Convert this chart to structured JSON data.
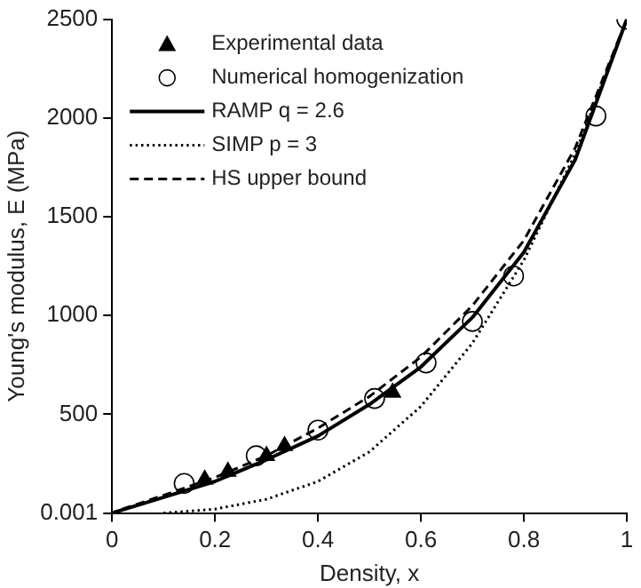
{
  "chart_data": {
    "type": "scatter",
    "xlabel": "Density, x",
    "ylabel": "Young's modulus, E (MPa)",
    "xlim": [
      0,
      1
    ],
    "xticks": [
      0,
      0.2,
      0.4,
      0.6,
      0.8,
      1
    ],
    "ylim": [
      0.001,
      2500
    ],
    "yticks": [
      0.001,
      500,
      1000,
      1500,
      2000,
      2500
    ],
    "grid": false,
    "legend": "top left",
    "series": [
      {
        "name": "Experimental data",
        "type": "scatter",
        "marker": "triangle",
        "color": "#000000",
        "x": [
          0.18,
          0.225,
          0.3,
          0.335,
          0.545
        ],
        "values": [
          170,
          210,
          290,
          340,
          610
        ]
      },
      {
        "name": "Numerical homogenization",
        "type": "scatter",
        "marker": "circle",
        "color": "#000000",
        "x": [
          0.14,
          0.28,
          0.4,
          0.51,
          0.61,
          0.7,
          0.78,
          0.94,
          1.0
        ],
        "values": [
          150,
          290,
          420,
          580,
          760,
          970,
          1200,
          2010,
          2500
        ]
      },
      {
        "name": "RAMP q = 2.6",
        "type": "line",
        "line_style": "solid",
        "marker": "none",
        "color": "#000000",
        "x": [
          0,
          0.1,
          0.2,
          0.3,
          0.4,
          0.5,
          0.6,
          0.7,
          0.8,
          0.9,
          1.0
        ],
        "values": [
          0.001,
          80,
          160,
          270,
          390,
          550,
          740,
          990,
          1320,
          1790,
          2500
        ]
      },
      {
        "name": "SIMP p = 3",
        "type": "line",
        "line_style": "dotted",
        "marker": "none",
        "color": "#000000",
        "x": [
          0.1,
          0.2,
          0.3,
          0.4,
          0.5,
          0.6,
          0.7,
          0.8,
          0.9,
          1.0
        ],
        "values": [
          0.001,
          20,
          70,
          160,
          310,
          540,
          860,
          1280,
          1820,
          2500
        ]
      },
      {
        "name": "HS upper bound",
        "type": "line",
        "line_style": "dashed",
        "marker": "none",
        "color": "#000000",
        "x": [
          0.02,
          0.1,
          0.2,
          0.3,
          0.4,
          0.5,
          0.6,
          0.7,
          0.8,
          0.9,
          1.0
        ],
        "values": [
          20,
          90,
          180,
          290,
          430,
          590,
          790,
          1050,
          1380,
          1850,
          2500
        ]
      }
    ]
  }
}
